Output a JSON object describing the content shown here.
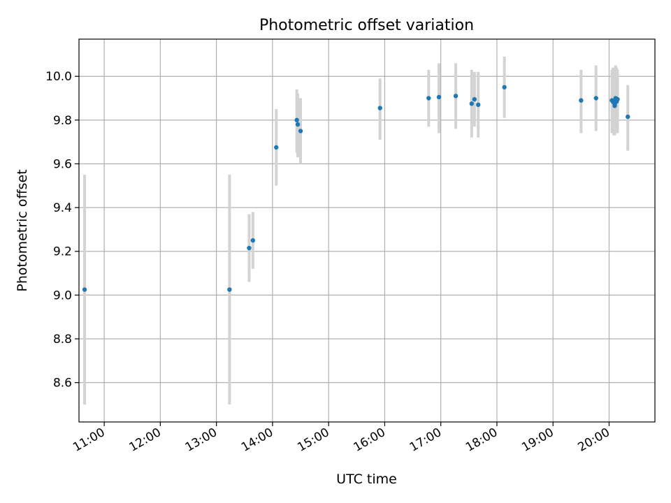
{
  "chart_data": {
    "type": "scatter",
    "title": "Photometric offset variation",
    "xlabel": "UTC time",
    "ylabel": "Photometric offset",
    "xlim": [
      "10:33",
      "20:49"
    ],
    "ylim": [
      8.42,
      10.17
    ],
    "x_ticks": [
      "11:00",
      "12:00",
      "13:00",
      "14:00",
      "15:00",
      "16:00",
      "17:00",
      "18:00",
      "19:00",
      "20:00"
    ],
    "y_ticks": [
      8.6,
      8.8,
      9.0,
      9.2,
      9.4,
      9.6,
      9.8,
      10.0
    ],
    "grid": true,
    "legend": "none",
    "colors": {
      "marker": "#1f77b4",
      "errorbar": "#d3d3d3",
      "grid": "#b0b0b0"
    },
    "points": [
      {
        "x": "10:39",
        "y": 9.025,
        "yerr_low": 8.5,
        "yerr_high": 9.55
      },
      {
        "x": "13:14",
        "y": 9.025,
        "yerr_low": 8.5,
        "yerr_high": 9.55
      },
      {
        "x": "13:35",
        "y": 9.215,
        "yerr_low": 9.06,
        "yerr_high": 9.37
      },
      {
        "x": "13:39",
        "y": 9.25,
        "yerr_low": 9.12,
        "yerr_high": 9.38
      },
      {
        "x": "14:04",
        "y": 9.675,
        "yerr_low": 9.5,
        "yerr_high": 9.85
      },
      {
        "x": "14:26",
        "y": 9.8,
        "yerr_low": 9.65,
        "yerr_high": 9.94
      },
      {
        "x": "14:27",
        "y": 9.78,
        "yerr_low": 9.63,
        "yerr_high": 9.92
      },
      {
        "x": "14:30",
        "y": 9.75,
        "yerr_low": 9.6,
        "yerr_high": 9.9
      },
      {
        "x": "15:55",
        "y": 9.855,
        "yerr_low": 9.71,
        "yerr_high": 9.99
      },
      {
        "x": "16:47",
        "y": 9.9,
        "yerr_low": 9.77,
        "yerr_high": 10.03
      },
      {
        "x": "16:58",
        "y": 9.905,
        "yerr_low": 9.74,
        "yerr_high": 10.06
      },
      {
        "x": "17:16",
        "y": 9.91,
        "yerr_low": 9.76,
        "yerr_high": 10.06
      },
      {
        "x": "17:33",
        "y": 9.875,
        "yerr_low": 9.72,
        "yerr_high": 10.03
      },
      {
        "x": "17:36",
        "y": 9.895,
        "yerr_low": 9.77,
        "yerr_high": 10.02
      },
      {
        "x": "17:40",
        "y": 9.87,
        "yerr_low": 9.72,
        "yerr_high": 10.02
      },
      {
        "x": "18:08",
        "y": 9.95,
        "yerr_low": 9.81,
        "yerr_high": 10.09
      },
      {
        "x": "19:30",
        "y": 9.89,
        "yerr_low": 9.74,
        "yerr_high": 10.03
      },
      {
        "x": "19:46",
        "y": 9.9,
        "yerr_low": 9.75,
        "yerr_high": 10.05
      },
      {
        "x": "20:03",
        "y": 9.89,
        "yerr_low": 9.74,
        "yerr_high": 10.03
      },
      {
        "x": "20:04",
        "y": 9.885,
        "yerr_low": 9.74,
        "yerr_high": 10.04
      },
      {
        "x": "20:05",
        "y": 9.88,
        "yerr_low": 9.73,
        "yerr_high": 10.03
      },
      {
        "x": "20:06",
        "y": 9.865,
        "yerr_low": 9.73,
        "yerr_high": 10.03
      },
      {
        "x": "20:06",
        "y": 9.875,
        "yerr_low": 9.74,
        "yerr_high": 10.04
      },
      {
        "x": "20:07",
        "y": 9.89,
        "yerr_low": 9.74,
        "yerr_high": 10.05
      },
      {
        "x": "20:07",
        "y": 9.9,
        "yerr_low": 9.75,
        "yerr_high": 10.03
      },
      {
        "x": "20:08",
        "y": 9.885,
        "yerr_low": 9.75,
        "yerr_high": 10.04
      },
      {
        "x": "20:09",
        "y": 9.895,
        "yerr_low": 9.74,
        "yerr_high": 10.03
      },
      {
        "x": "20:20",
        "y": 9.815,
        "yerr_low": 9.66,
        "yerr_high": 9.96
      }
    ]
  }
}
